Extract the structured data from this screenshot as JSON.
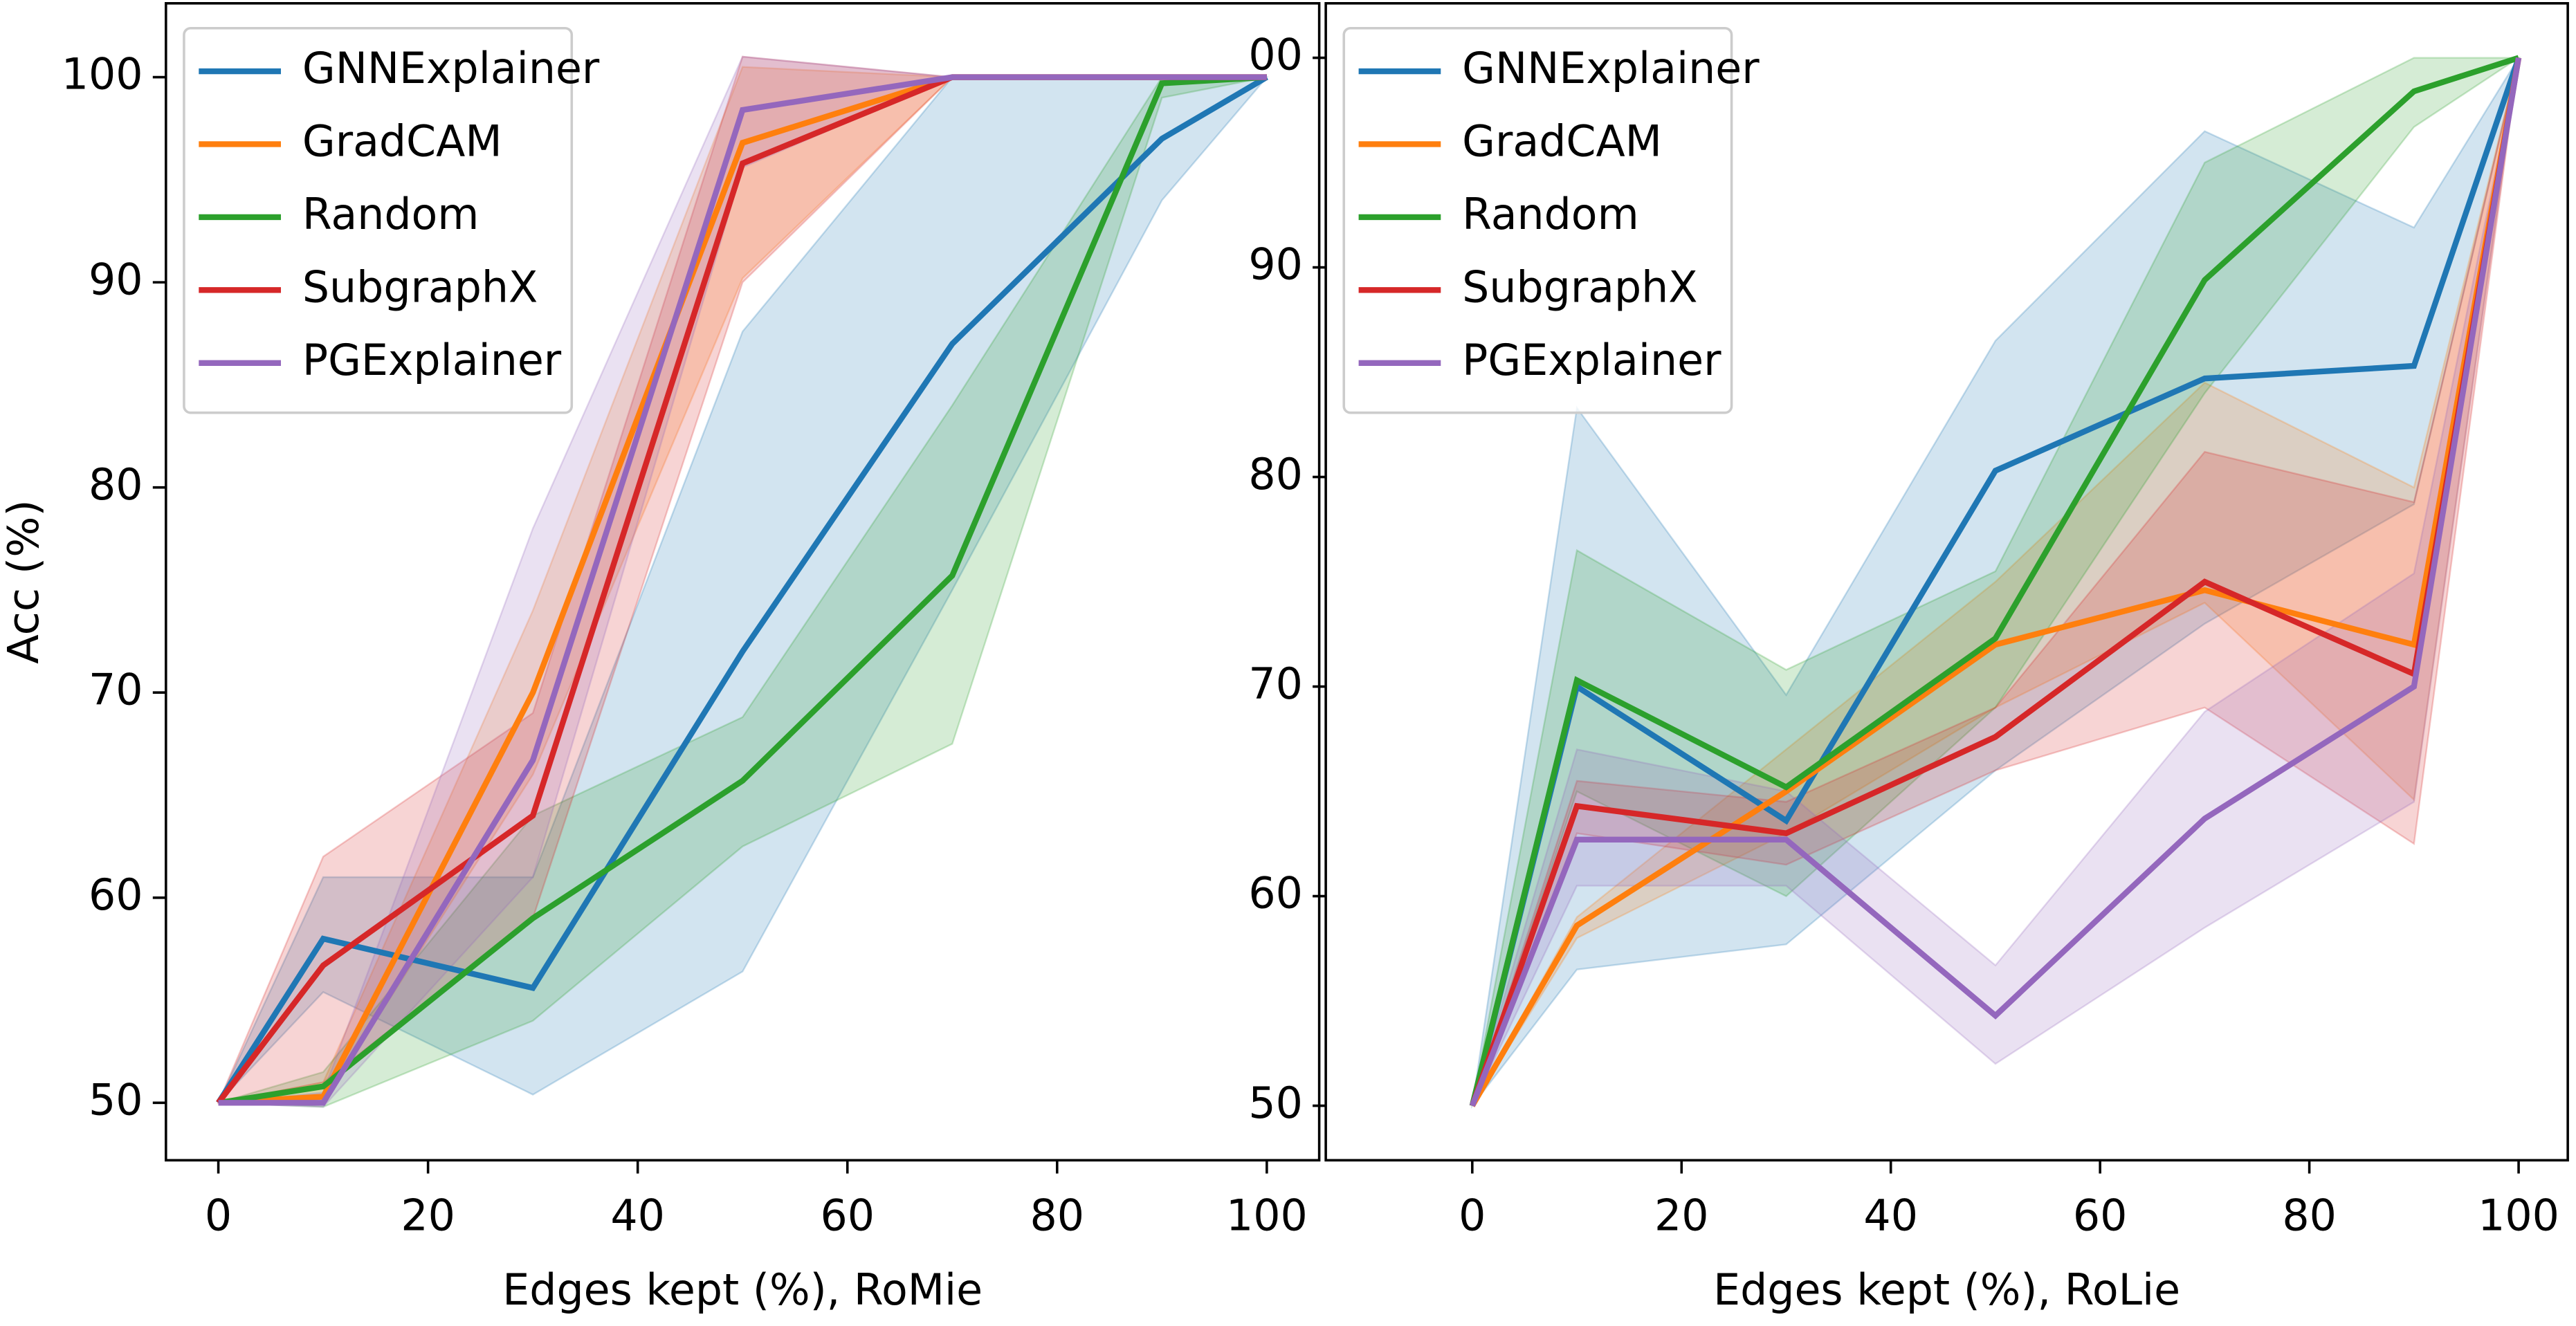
{
  "chart_data": [
    {
      "type": "line",
      "xlabel": "Edges kept (%), RoMie",
      "ylabel": "Acc (%)",
      "x": [
        0,
        10,
        30,
        50,
        70,
        90,
        100
      ],
      "xlim": [
        -5,
        105
      ],
      "ylim": [
        47.2,
        103.6
      ],
      "xticks": [
        0,
        20,
        40,
        60,
        80,
        100
      ],
      "yticks": [
        50,
        60,
        70,
        80,
        90,
        100
      ],
      "legend": "upper left",
      "series": [
        {
          "name": "GNNExplainer",
          "color": "#1f77b4",
          "values": [
            50,
            58,
            55.6,
            72,
            87,
            97,
            100
          ],
          "lower": [
            50,
            55.4,
            50.4,
            56.4,
            75,
            94,
            100
          ],
          "upper": [
            50,
            61,
            61,
            87.6,
            100,
            100,
            100
          ]
        },
        {
          "name": "GradCAM",
          "color": "#ff7f0e",
          "values": [
            50,
            50.3,
            70,
            96.8,
            100,
            100,
            100
          ],
          "lower": [
            50,
            50,
            66,
            90.2,
            100,
            100,
            100
          ],
          "upper": [
            50,
            51,
            74,
            100.5,
            100,
            100,
            100
          ]
        },
        {
          "name": "Random",
          "color": "#2ca02c",
          "values": [
            50,
            50.8,
            59,
            65.7,
            75.7,
            99.7,
            100
          ],
          "lower": [
            50,
            49.8,
            54,
            62.5,
            67.5,
            99,
            100
          ],
          "upper": [
            50,
            51.5,
            64,
            68.8,
            84,
            100,
            100
          ]
        },
        {
          "name": "SubgraphX",
          "color": "#d62728",
          "values": [
            50,
            56.7,
            64,
            95.8,
            100,
            100,
            100
          ],
          "lower": [
            50,
            51,
            59,
            90,
            100,
            100,
            100
          ],
          "upper": [
            50,
            62,
            69,
            101,
            100,
            100,
            100
          ]
        },
        {
          "name": "PGExplainer",
          "color": "#9467bd",
          "values": [
            50,
            50,
            66.7,
            98.4,
            100,
            100,
            100
          ],
          "lower": [
            50,
            49.8,
            61,
            95.6,
            100,
            100,
            100
          ],
          "upper": [
            50,
            50.5,
            78,
            101,
            100,
            100,
            100
          ]
        }
      ]
    },
    {
      "type": "line",
      "xlabel": "Edges kept (%), RoLie",
      "x": [
        0,
        10,
        30,
        50,
        70,
        90,
        100
      ],
      "xlim": [
        -14,
        104.7
      ],
      "ylim": [
        47.4,
        102.6
      ],
      "xticks": [
        0,
        20,
        40,
        60,
        80,
        100
      ],
      "yticks": [
        50,
        60,
        70,
        80,
        90,
        {
          "value": 100,
          "label": "00"
        }
      ],
      "legend": "upper left",
      "series": [
        {
          "name": "GNNExplainer",
          "color": "#1f77b4",
          "values": [
            50,
            70,
            63.6,
            80.3,
            84.7,
            85.3,
            100
          ],
          "lower": [
            50,
            56.5,
            57.7,
            66,
            73,
            78.7,
            100
          ],
          "upper": [
            50,
            83.3,
            69.6,
            86.5,
            96.5,
            91.9,
            100
          ]
        },
        {
          "name": "GradCAM",
          "color": "#ff7f0e",
          "values": [
            50,
            58.6,
            65,
            72,
            74.6,
            72,
            100
          ],
          "lower": [
            50,
            58,
            63,
            69,
            74,
            64.6,
            100
          ],
          "upper": [
            50,
            59,
            67,
            75,
            84.5,
            79.5,
            100
          ]
        },
        {
          "name": "Random",
          "color": "#2ca02c",
          "values": [
            50,
            70.3,
            65.2,
            72.3,
            89.4,
            98.4,
            100
          ],
          "lower": [
            50,
            65,
            60,
            69,
            84,
            96.7,
            100
          ],
          "upper": [
            50,
            76.5,
            70.8,
            75.5,
            95,
            100,
            100
          ]
        },
        {
          "name": "SubgraphX",
          "color": "#d62728",
          "values": [
            50,
            64.3,
            63,
            67.6,
            75,
            70.6,
            100
          ],
          "lower": [
            50,
            63,
            61.5,
            66,
            69,
            62.5,
            100
          ],
          "upper": [
            50,
            65.5,
            64.5,
            69,
            81.2,
            78.8,
            100
          ]
        },
        {
          "name": "PGExplainer",
          "color": "#9467bd",
          "values": [
            50,
            62.7,
            62.7,
            54.3,
            63.7,
            70,
            100
          ],
          "lower": [
            50,
            60.5,
            60.5,
            52,
            58.5,
            64.5,
            100
          ],
          "upper": [
            50,
            67,
            65,
            56.7,
            68.8,
            75.4,
            100
          ]
        }
      ]
    }
  ]
}
